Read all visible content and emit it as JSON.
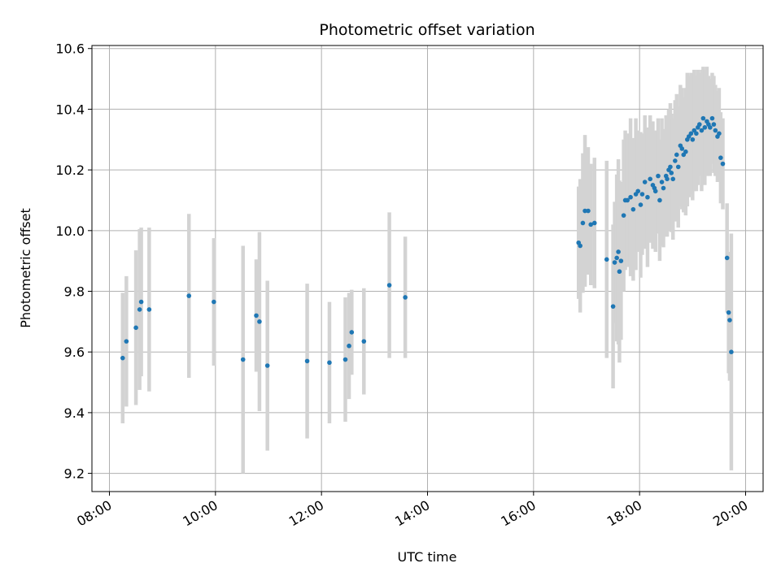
{
  "chart_data": {
    "type": "scatter",
    "title": "Photometric offset variation",
    "xlabel": "UTC time",
    "ylabel": "Photometric offset",
    "x_unit": "hours UTC",
    "xlim": [
      7.67,
      20.33
    ],
    "ylim": [
      9.14,
      10.61
    ],
    "x_ticks": [
      8,
      10,
      12,
      14,
      16,
      18,
      20
    ],
    "x_tick_labels": [
      "08:00",
      "10:00",
      "12:00",
      "14:00",
      "16:00",
      "18:00",
      "20:00"
    ],
    "y_ticks": [
      9.2,
      9.4,
      9.6,
      9.8,
      10.0,
      10.2,
      10.4,
      10.6
    ],
    "y_tick_labels": [
      "9.2",
      "9.4",
      "9.6",
      "9.8",
      "10.0",
      "10.2",
      "10.4",
      "10.6"
    ],
    "grid": true,
    "marker_color": "#1f77b4",
    "errorbar_color": "#d3d3d3",
    "series": [
      {
        "x": [
          8.25,
          8.32,
          8.5,
          8.57,
          8.6,
          8.75,
          9.5,
          9.97,
          10.52,
          10.77,
          10.83,
          10.98,
          11.73,
          12.15,
          12.45,
          12.52,
          12.57,
          12.8,
          13.28,
          13.58,
          16.85,
          16.88,
          16.93,
          16.97,
          17.03,
          17.08,
          17.15,
          17.38,
          17.5,
          17.53,
          17.57,
          17.6,
          17.62,
          17.65,
          17.7,
          17.73,
          17.77,
          17.83,
          17.88,
          17.93,
          17.97,
          18.02,
          18.05,
          18.1,
          18.15,
          18.2,
          18.25,
          18.28,
          18.3,
          18.35,
          18.38,
          18.42,
          18.45,
          18.5,
          18.52,
          18.55,
          18.58,
          18.6,
          18.63,
          18.67,
          18.7,
          18.73,
          18.77,
          18.8,
          18.83,
          18.87,
          18.9,
          18.93,
          18.97,
          19.0,
          19.03,
          19.07,
          19.1,
          19.13,
          19.17,
          19.2,
          19.23,
          19.27,
          19.3,
          19.33,
          19.37,
          19.4,
          19.43,
          19.47,
          19.5,
          19.53,
          19.57,
          19.65,
          19.68,
          19.7,
          19.73
        ],
        "y": [
          9.58,
          9.635,
          9.68,
          9.74,
          9.765,
          9.74,
          9.785,
          9.765,
          9.575,
          9.72,
          9.7,
          9.555,
          9.57,
          9.565,
          9.575,
          9.62,
          9.665,
          9.635,
          9.82,
          9.78,
          9.96,
          9.95,
          10.025,
          10.065,
          10.065,
          10.02,
          10.025,
          9.905,
          9.75,
          9.895,
          9.91,
          9.93,
          9.865,
          9.9,
          10.05,
          10.1,
          10.1,
          10.11,
          10.07,
          10.12,
          10.13,
          10.085,
          10.12,
          10.16,
          10.11,
          10.17,
          10.15,
          10.14,
          10.13,
          10.18,
          10.1,
          10.16,
          10.14,
          10.18,
          10.17,
          10.2,
          10.21,
          10.19,
          10.17,
          10.23,
          10.25,
          10.21,
          10.28,
          10.27,
          10.25,
          10.26,
          10.3,
          10.31,
          10.32,
          10.3,
          10.33,
          10.32,
          10.34,
          10.35,
          10.33,
          10.37,
          10.34,
          10.36,
          10.35,
          10.34,
          10.37,
          10.35,
          10.33,
          10.31,
          10.32,
          10.24,
          10.22,
          9.91,
          9.73,
          9.705,
          9.6
        ],
        "err": [
          0.215,
          0.215,
          0.255,
          0.265,
          0.245,
          0.27,
          0.27,
          0.21,
          0.375,
          0.185,
          0.295,
          0.28,
          0.255,
          0.2,
          0.205,
          0.175,
          0.14,
          0.175,
          0.24,
          0.2,
          0.185,
          0.22,
          0.23,
          0.25,
          0.21,
          0.2,
          0.215,
          0.325,
          0.27,
          0.2,
          0.275,
          0.305,
          0.3,
          0.26,
          0.25,
          0.23,
          0.22,
          0.26,
          0.235,
          0.25,
          0.2,
          0.24,
          0.2,
          0.22,
          0.23,
          0.21,
          0.21,
          0.18,
          0.2,
          0.19,
          0.2,
          0.21,
          0.195,
          0.2,
          0.19,
          0.2,
          0.21,
          0.195,
          0.2,
          0.2,
          0.2,
          0.2,
          0.2,
          0.2,
          0.19,
          0.21,
          0.22,
          0.2,
          0.2,
          0.2,
          0.2,
          0.19,
          0.19,
          0.17,
          0.2,
          0.17,
          0.19,
          0.18,
          0.16,
          0.16,
          0.15,
          0.16,
          0.15,
          0.15,
          0.15,
          0.15,
          0.15,
          0.18,
          0.2,
          0.2,
          0.39
        ]
      }
    ]
  }
}
